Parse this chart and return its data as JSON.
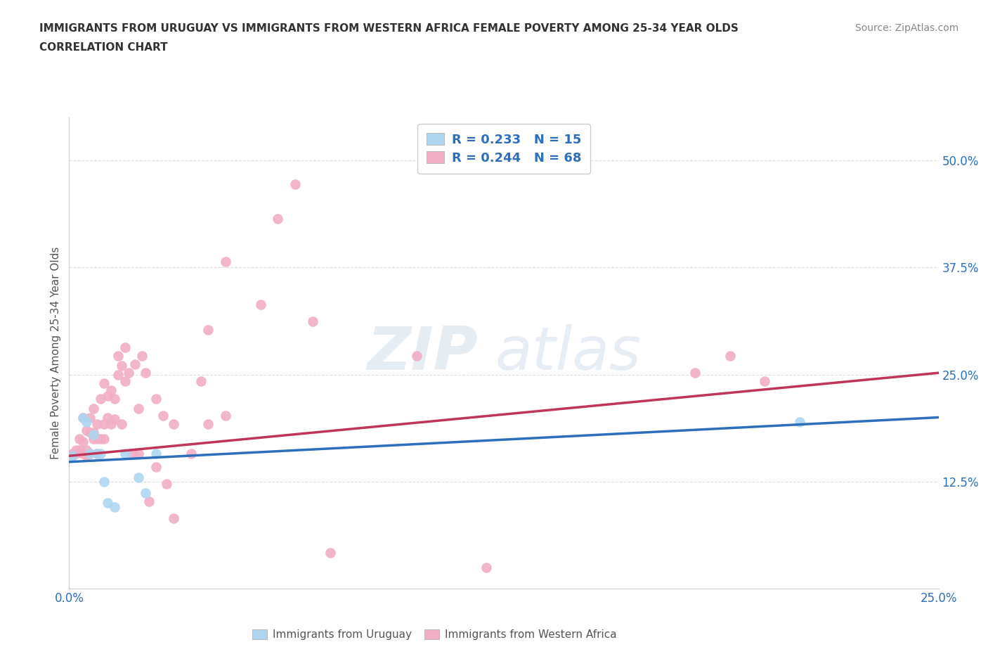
{
  "title_line1": "IMMIGRANTS FROM URUGUAY VS IMMIGRANTS FROM WESTERN AFRICA FEMALE POVERTY AMONG 25-34 YEAR OLDS",
  "title_line2": "CORRELATION CHART",
  "source_text": "Source: ZipAtlas.com",
  "ylabel": "Female Poverty Among 25-34 Year Olds",
  "xlim": [
    0.0,
    0.25
  ],
  "ylim": [
    0.0,
    0.55
  ],
  "xtick_positions": [
    0.0,
    0.05,
    0.1,
    0.15,
    0.2,
    0.25
  ],
  "xticklabels": [
    "0.0%",
    "",
    "",
    "",
    "",
    "25.0%"
  ],
  "ytick_positions": [
    0.125,
    0.25,
    0.375,
    0.5
  ],
  "ytick_labels": [
    "12.5%",
    "25.0%",
    "37.5%",
    "50.0%"
  ],
  "R_uruguay": 0.233,
  "N_uruguay": 15,
  "R_western_africa": 0.244,
  "N_western_africa": 68,
  "legend_label_uruguay": "Immigrants from Uruguay",
  "legend_label_western_africa": "Immigrants from Western Africa",
  "color_uruguay": "#aed6f1",
  "color_western_africa": "#f1aec5",
  "color_line_uruguay": "#2e6fbc",
  "color_line_western_africa": "#c0365a",
  "color_title": "#333333",
  "color_source": "#888888",
  "color_axis_label": "#2e6fbc",
  "watermark_zip": "ZIP",
  "watermark_atlas": "atlas",
  "uruguay_x": [
    0.001,
    0.004,
    0.005,
    0.006,
    0.007,
    0.008,
    0.009,
    0.01,
    0.011,
    0.013,
    0.016,
    0.02,
    0.022,
    0.025,
    0.21
  ],
  "uruguay_y": [
    0.155,
    0.2,
    0.195,
    0.158,
    0.18,
    0.158,
    0.158,
    0.125,
    0.1,
    0.095,
    0.158,
    0.13,
    0.112,
    0.158,
    0.195
  ],
  "western_africa_x": [
    0.001,
    0.001,
    0.002,
    0.002,
    0.003,
    0.003,
    0.004,
    0.004,
    0.004,
    0.005,
    0.005,
    0.005,
    0.006,
    0.006,
    0.006,
    0.007,
    0.007,
    0.007,
    0.008,
    0.008,
    0.008,
    0.009,
    0.009,
    0.01,
    0.01,
    0.01,
    0.011,
    0.011,
    0.012,
    0.012,
    0.013,
    0.013,
    0.014,
    0.014,
    0.015,
    0.015,
    0.016,
    0.016,
    0.017,
    0.018,
    0.019,
    0.02,
    0.02,
    0.021,
    0.022,
    0.023,
    0.025,
    0.025,
    0.027,
    0.028,
    0.03,
    0.03,
    0.035,
    0.038,
    0.04,
    0.04,
    0.045,
    0.045,
    0.055,
    0.06,
    0.065,
    0.07,
    0.075,
    0.1,
    0.12,
    0.18,
    0.19,
    0.2
  ],
  "western_africa_y": [
    0.155,
    0.158,
    0.158,
    0.162,
    0.162,
    0.175,
    0.158,
    0.172,
    0.2,
    0.155,
    0.162,
    0.185,
    0.158,
    0.182,
    0.2,
    0.175,
    0.182,
    0.21,
    0.158,
    0.175,
    0.192,
    0.175,
    0.222,
    0.175,
    0.192,
    0.24,
    0.2,
    0.225,
    0.192,
    0.232,
    0.198,
    0.222,
    0.25,
    0.272,
    0.192,
    0.26,
    0.242,
    0.282,
    0.252,
    0.158,
    0.262,
    0.21,
    0.158,
    0.272,
    0.252,
    0.102,
    0.142,
    0.222,
    0.202,
    0.122,
    0.192,
    0.082,
    0.158,
    0.242,
    0.192,
    0.302,
    0.202,
    0.382,
    0.332,
    0.432,
    0.472,
    0.312,
    0.042,
    0.272,
    0.025,
    0.252,
    0.272,
    0.242
  ],
  "line_uruguay_x0": 0.0,
  "line_uruguay_y0": 0.148,
  "line_uruguay_x1": 0.25,
  "line_uruguay_y1": 0.2,
  "line_wa_x0": 0.0,
  "line_wa_y0": 0.155,
  "line_wa_x1": 0.25,
  "line_wa_y1": 0.252
}
